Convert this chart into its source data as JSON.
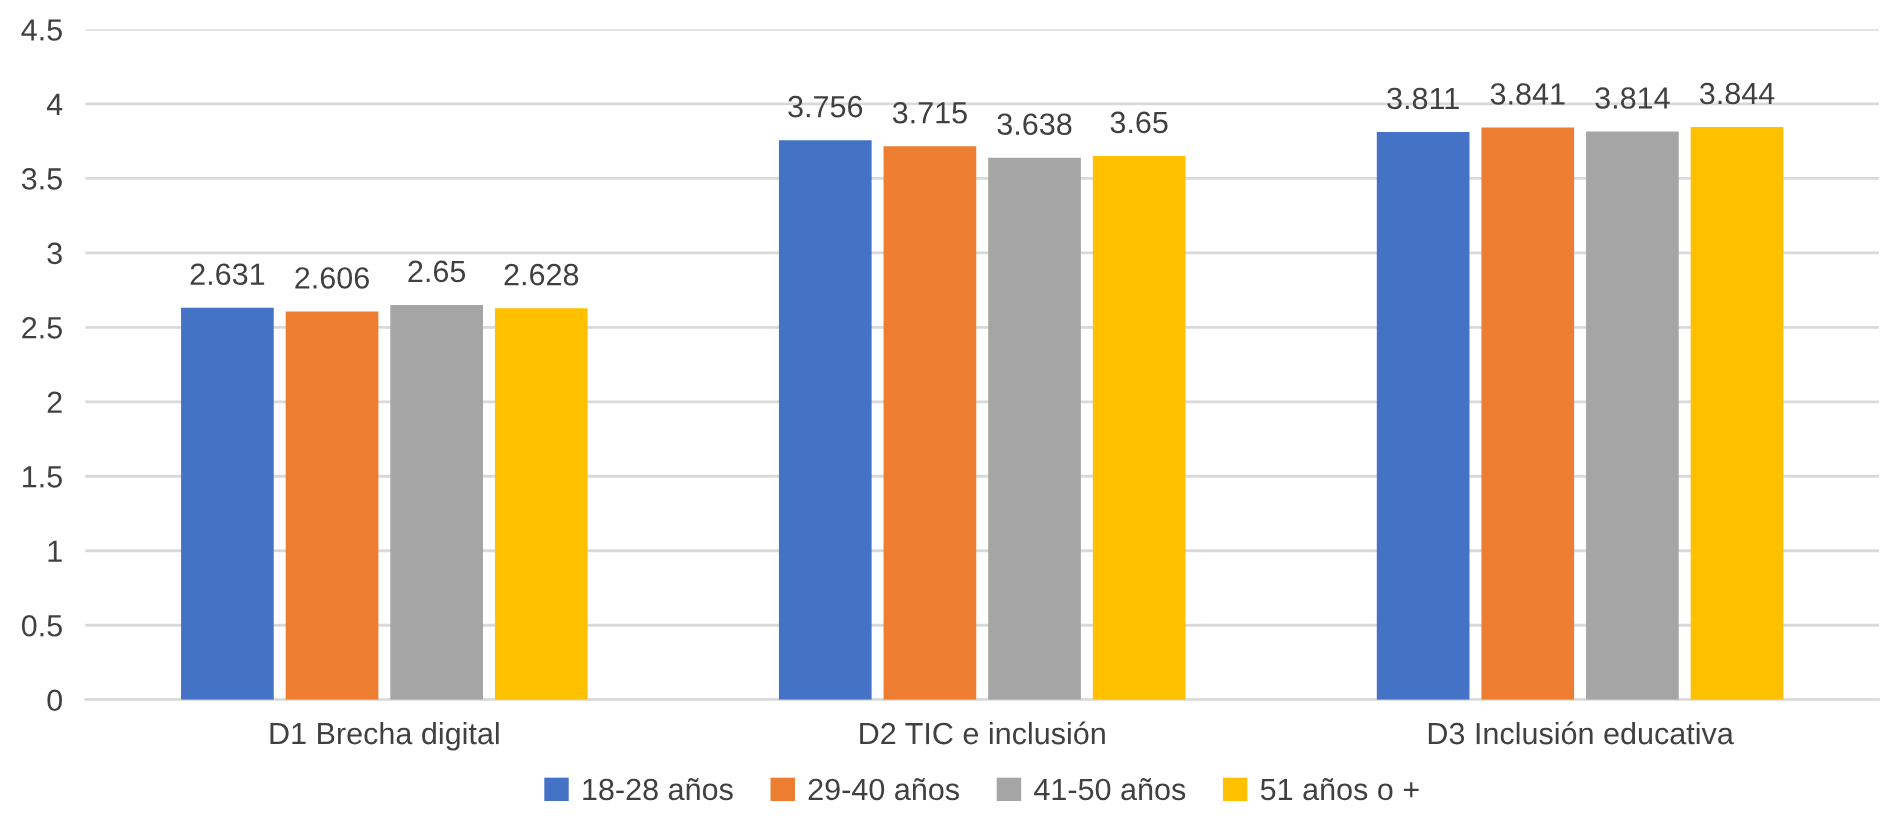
{
  "chart_data": {
    "type": "bar",
    "categories": [
      "D1 Brecha digital",
      "D2 TIC e inclusión",
      "D3 Inclusión educativa"
    ],
    "series": [
      {
        "name": "18-28 años",
        "color": "#4472c4",
        "values": [
          2.631,
          3.756,
          3.811
        ]
      },
      {
        "name": "29-40 años",
        "color": "#ed7d31",
        "values": [
          2.606,
          3.715,
          3.841
        ]
      },
      {
        "name": "41-50 años",
        "color": "#a5a5a5",
        "values": [
          2.65,
          3.638,
          3.814
        ]
      },
      {
        "name": "51 años o +",
        "color": "#ffc000",
        "values": [
          2.628,
          3.65,
          3.844
        ]
      }
    ],
    "ylim": [
      0,
      4.5
    ],
    "yticks": [
      0,
      0.5,
      1,
      1.5,
      2,
      2.5,
      3,
      3.5,
      4,
      4.5
    ],
    "grid": "y",
    "legend": "bottom",
    "data_labels": true
  }
}
